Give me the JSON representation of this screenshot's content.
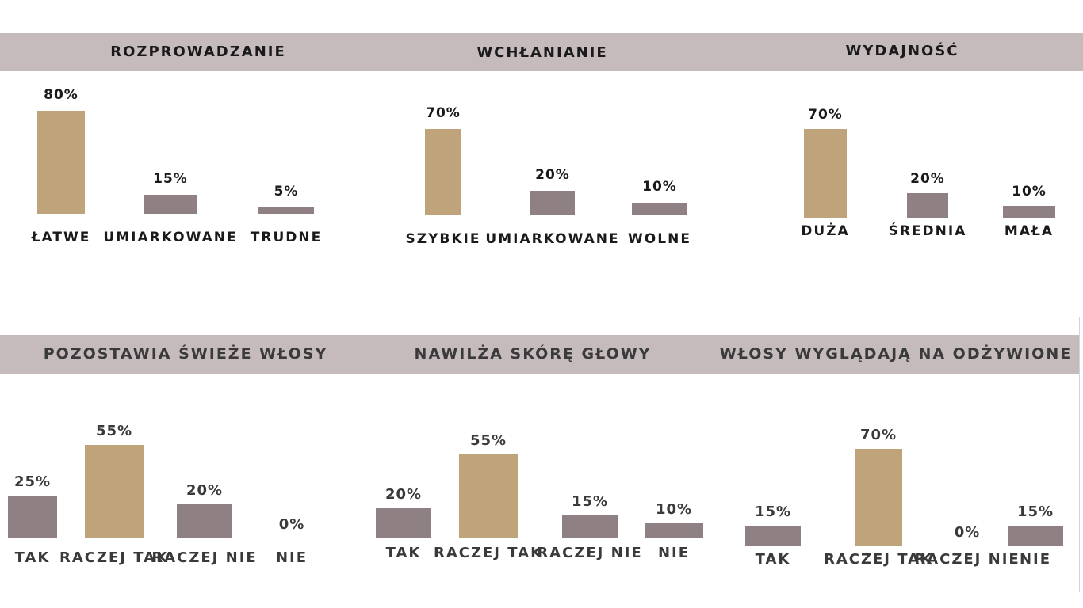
{
  "colors": {
    "band": "#c5bbbc",
    "gold": "#bfa37a",
    "mauve": "#8f8083"
  },
  "chart_data": [
    {
      "type": "bar",
      "title": "ROZPROWADZANIE",
      "categories": [
        "ŁATWE",
        "UMIARKOWANE",
        "TRUDNE"
      ],
      "values": [
        80,
        15,
        5
      ],
      "labels": [
        "80%",
        "15%",
        "5%"
      ],
      "highlight": [
        true,
        false,
        false
      ]
    },
    {
      "type": "bar",
      "title": "WCHŁANIANIE",
      "categories": [
        "SZYBKIE",
        "UMIARKOWANE",
        "WOLNE"
      ],
      "values": [
        70,
        20,
        10
      ],
      "labels": [
        "70%",
        "20%",
        "10%"
      ],
      "highlight": [
        true,
        false,
        false
      ]
    },
    {
      "type": "bar",
      "title": "WYDAJNOŚĆ",
      "categories": [
        "DUŻA",
        "ŚREDNIA",
        "MAŁA"
      ],
      "values": [
        70,
        20,
        10
      ],
      "labels": [
        "70%",
        "20%",
        "10%"
      ],
      "highlight": [
        true,
        false,
        false
      ]
    },
    {
      "type": "bar",
      "title": "POZOSTAWIA ŚWIEŻE WŁOSY",
      "categories": [
        "TAK",
        "RACZEJ TAK",
        "RACZEJ NIE",
        "NIE"
      ],
      "values": [
        25,
        55,
        20,
        0
      ],
      "labels": [
        "25%",
        "55%",
        "20%",
        "0%"
      ],
      "highlight": [
        false,
        true,
        false,
        false
      ]
    },
    {
      "type": "bar",
      "title": "NAWILŻA SKÓRĘ GŁOWY",
      "categories": [
        "TAK",
        "RACZEJ TAK",
        "RACZEJ NIE",
        "NIE"
      ],
      "values": [
        20,
        55,
        15,
        10
      ],
      "labels": [
        "20%",
        "55%",
        "15%",
        "10%"
      ],
      "highlight": [
        false,
        true,
        false,
        false
      ]
    },
    {
      "type": "bar",
      "title": "WŁOSY WYGLĄDAJĄ NA ODŻYWIONE",
      "categories": [
        "TAK",
        "RACZEJ TAK",
        "RACZEJ NIE",
        "NIE"
      ],
      "values": [
        15,
        70,
        0,
        15
      ],
      "labels": [
        "15%",
        "70%",
        "0%",
        "15%"
      ],
      "highlight": [
        false,
        true,
        false,
        false
      ]
    }
  ]
}
